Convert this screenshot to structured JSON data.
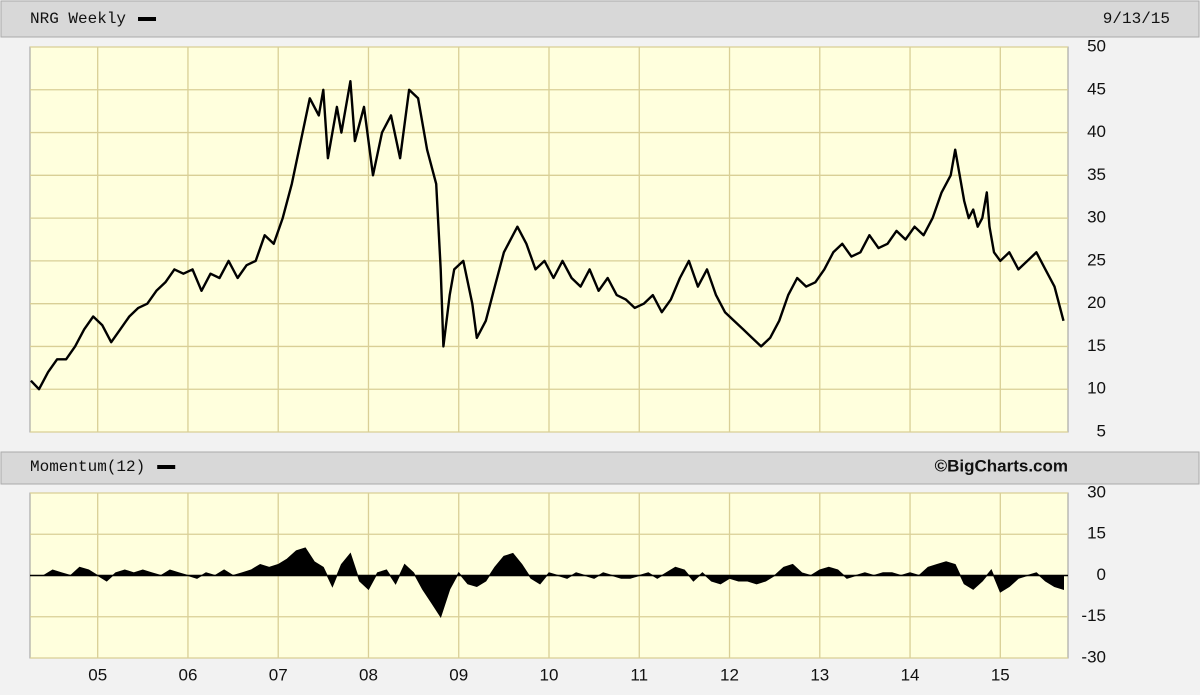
{
  "chart_data": [
    {
      "type": "line",
      "annotation": "9/13/15",
      "series": [
        {
          "name": "NRG Weekly",
          "color": "#000000",
          "x": [
            2004.26,
            2004.35,
            2004.45,
            2004.55,
            2004.65,
            2004.75,
            2004.85,
            2004.95,
            2005.05,
            2005.15,
            2005.25,
            2005.35,
            2005.45,
            2005.55,
            2005.65,
            2005.75,
            2005.85,
            2005.95,
            2006.05,
            2006.15,
            2006.25,
            2006.35,
            2006.45,
            2006.55,
            2006.65,
            2006.75,
            2006.85,
            2006.95,
            2007.05,
            2007.15,
            2007.25,
            2007.35,
            2007.45,
            2007.5,
            2007.55,
            2007.65,
            2007.7,
            2007.8,
            2007.85,
            2007.95,
            2008.05,
            2008.15,
            2008.25,
            2008.35,
            2008.45,
            2008.55,
            2008.65,
            2008.75,
            2008.8,
            2008.83,
            2008.9,
            2008.95,
            2009.05,
            2009.15,
            2009.2,
            2009.3,
            2009.4,
            2009.5,
            2009.6,
            2009.65,
            2009.75,
            2009.85,
            2009.95,
            2010.05,
            2010.15,
            2010.25,
            2010.35,
            2010.45,
            2010.55,
            2010.65,
            2010.75,
            2010.85,
            2010.95,
            2011.05,
            2011.15,
            2011.25,
            2011.35,
            2011.45,
            2011.55,
            2011.65,
            2011.75,
            2011.85,
            2011.95,
            2012.05,
            2012.15,
            2012.25,
            2012.35,
            2012.45,
            2012.55,
            2012.65,
            2012.75,
            2012.85,
            2012.95,
            2013.05,
            2013.15,
            2013.25,
            2013.35,
            2013.45,
            2013.55,
            2013.65,
            2013.75,
            2013.85,
            2013.95,
            2014.05,
            2014.15,
            2014.25,
            2014.35,
            2014.45,
            2014.5,
            2014.55,
            2014.6,
            2014.65,
            2014.7,
            2014.75,
            2014.8,
            2014.85,
            2014.88,
            2014.93,
            2015.0,
            2015.1,
            2015.2,
            2015.3,
            2015.4,
            2015.5,
            2015.6,
            2015.65,
            2015.7
          ],
          "values": [
            11,
            10,
            12,
            13.5,
            13.5,
            15,
            17,
            18.5,
            17.5,
            15.5,
            17,
            18.5,
            19.5,
            20,
            21.5,
            22.5,
            24,
            23.5,
            24,
            21.5,
            23.5,
            23,
            25,
            23,
            24.5,
            25,
            28,
            27,
            30,
            34,
            39,
            44,
            42,
            45,
            37,
            43,
            40,
            46,
            39,
            43,
            35,
            40,
            42,
            37,
            45,
            44,
            38,
            34,
            24,
            15,
            21,
            24,
            25,
            20,
            16,
            18,
            22,
            26,
            28,
            29,
            27,
            24,
            25,
            23,
            25,
            23,
            22,
            24,
            21.5,
            23,
            21,
            20.5,
            19.5,
            20,
            21,
            19,
            20.5,
            23,
            25,
            22,
            24,
            21,
            19,
            18,
            17,
            16,
            15,
            16,
            18,
            21,
            23,
            22,
            22.5,
            24,
            26,
            27,
            25.5,
            26,
            28,
            26.5,
            27,
            28.5,
            27.5,
            29,
            28,
            30,
            33,
            35,
            38,
            35,
            32,
            30,
            31,
            29,
            30,
            33,
            29,
            26,
            25,
            26,
            24,
            25,
            26,
            24,
            22,
            20,
            18
          ]
        }
      ],
      "xlim": [
        2004.25,
        2015.75
      ],
      "xticks": [
        {
          "value": 2005,
          "label": "05"
        },
        {
          "value": 2006,
          "label": "06"
        },
        {
          "value": 2007,
          "label": "07"
        },
        {
          "value": 2008,
          "label": "08"
        },
        {
          "value": 2009,
          "label": "09"
        },
        {
          "value": 2010,
          "label": "10"
        },
        {
          "value": 2011,
          "label": "11"
        },
        {
          "value": 2012,
          "label": "12"
        },
        {
          "value": 2013,
          "label": "13"
        },
        {
          "value": 2014,
          "label": "14"
        },
        {
          "value": 2015,
          "label": "15"
        }
      ],
      "ylim": [
        5,
        50
      ],
      "yticks": [
        50,
        45,
        40,
        35,
        30,
        25,
        20,
        15,
        10,
        5
      ],
      "grid": true
    },
    {
      "type": "area",
      "annotation": "©BigCharts.com",
      "series": [
        {
          "name": "Momentum(12)",
          "color": "#000000",
          "x": [
            2004.4,
            2004.5,
            2004.6,
            2004.7,
            2004.8,
            2004.9,
            2005.0,
            2005.1,
            2005.2,
            2005.3,
            2005.4,
            2005.5,
            2005.6,
            2005.7,
            2005.8,
            2005.9,
            2006.0,
            2006.1,
            2006.2,
            2006.3,
            2006.4,
            2006.5,
            2006.6,
            2006.7,
            2006.8,
            2006.9,
            2007.0,
            2007.1,
            2007.2,
            2007.3,
            2007.4,
            2007.5,
            2007.6,
            2007.7,
            2007.8,
            2007.9,
            2008.0,
            2008.1,
            2008.2,
            2008.3,
            2008.4,
            2008.5,
            2008.6,
            2008.7,
            2008.8,
            2008.9,
            2009.0,
            2009.1,
            2009.2,
            2009.3,
            2009.4,
            2009.5,
            2009.6,
            2009.7,
            2009.8,
            2009.9,
            2010.0,
            2010.1,
            2010.2,
            2010.3,
            2010.4,
            2010.5,
            2010.6,
            2010.7,
            2010.8,
            2010.9,
            2011.0,
            2011.1,
            2011.2,
            2011.3,
            2011.4,
            2011.5,
            2011.6,
            2011.7,
            2011.8,
            2011.9,
            2012.0,
            2012.1,
            2012.2,
            2012.3,
            2012.4,
            2012.5,
            2012.6,
            2012.7,
            2012.8,
            2012.9,
            2013.0,
            2013.1,
            2013.2,
            2013.3,
            2013.4,
            2013.5,
            2013.6,
            2013.7,
            2013.8,
            2013.9,
            2014.0,
            2014.1,
            2014.2,
            2014.3,
            2014.4,
            2014.5,
            2014.6,
            2014.7,
            2014.8,
            2014.9,
            2015.0,
            2015.1,
            2015.2,
            2015.3,
            2015.4,
            2015.5,
            2015.6,
            2015.7
          ],
          "values": [
            0,
            2,
            1,
            0,
            3,
            2,
            0,
            -2,
            1,
            2,
            1,
            2,
            1,
            0,
            2,
            1,
            0,
            -1,
            1,
            0,
            2,
            0,
            1,
            2,
            4,
            3,
            4,
            6,
            9,
            10,
            5,
            3,
            -4,
            4,
            8,
            -2,
            -5,
            1,
            2,
            -3,
            4,
            1,
            -5,
            -10,
            -15,
            -5,
            1,
            -3,
            -4,
            -2,
            3,
            7,
            8,
            4,
            -1,
            -3,
            1,
            0,
            -1,
            1,
            0,
            -1,
            1,
            0,
            -1,
            -1,
            0,
            1,
            -1,
            1,
            3,
            2,
            -2,
            1,
            -2,
            -3,
            -1,
            -2,
            -2,
            -3,
            -2,
            0,
            3,
            4,
            1,
            0,
            2,
            3,
            2,
            -1,
            0,
            1,
            0,
            1,
            1,
            0,
            1,
            0,
            3,
            4,
            5,
            4,
            -3,
            -5,
            -2,
            2,
            -6,
            -4,
            -1,
            0,
            1,
            -2,
            -4,
            -5
          ]
        }
      ],
      "xlim": [
        2004.25,
        2015.75
      ],
      "xticks": [
        {
          "value": 2005,
          "label": "05"
        },
        {
          "value": 2006,
          "label": "06"
        },
        {
          "value": 2007,
          "label": "07"
        },
        {
          "value": 2008,
          "label": "08"
        },
        {
          "value": 2009,
          "label": "09"
        },
        {
          "value": 2010,
          "label": "10"
        },
        {
          "value": 2011,
          "label": "11"
        },
        {
          "value": 2012,
          "label": "12"
        },
        {
          "value": 2013,
          "label": "13"
        },
        {
          "value": 2014,
          "label": "14"
        },
        {
          "value": 2015,
          "label": "15"
        }
      ],
      "ylim": [
        -30,
        30
      ],
      "yticks": [
        30,
        15,
        0,
        -15,
        -30
      ],
      "grid": true
    }
  ]
}
